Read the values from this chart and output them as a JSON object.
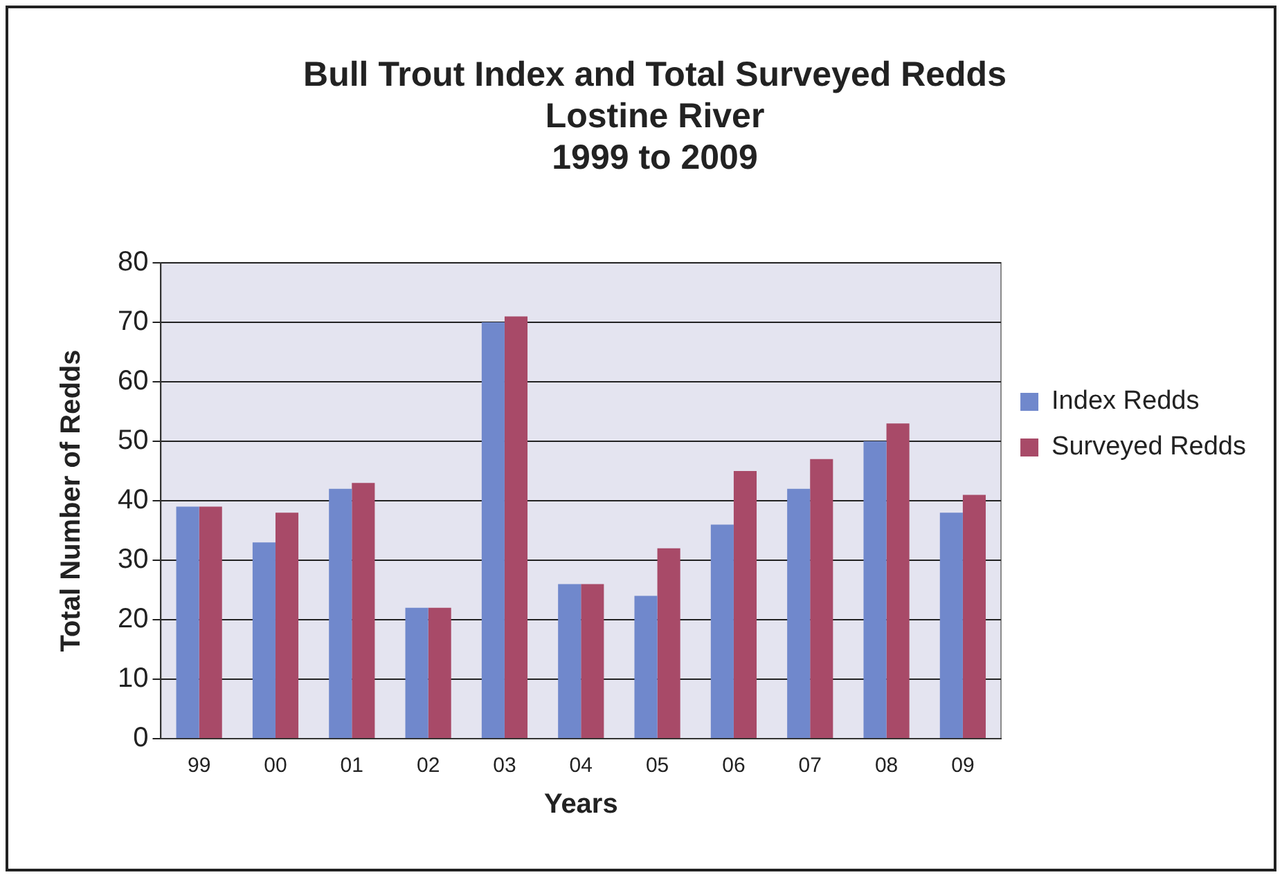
{
  "chart_data": {
    "type": "bar",
    "title": [
      "Bull Trout Index and Total Surveyed Redds",
      "Lostine River",
      "1999 to 2009"
    ],
    "xlabel": "Years",
    "ylabel": "Total Number of Redds",
    "categories": [
      "99",
      "00",
      "01",
      "02",
      "03",
      "04",
      "05",
      "06",
      "07",
      "08",
      "09"
    ],
    "series": [
      {
        "name": "Index Redds",
        "color": "#7088cc",
        "values": [
          39,
          33,
          42,
          22,
          70,
          26,
          24,
          36,
          42,
          50,
          38
        ]
      },
      {
        "name": "Surveyed Redds",
        "color": "#a84a68",
        "values": [
          39,
          38,
          43,
          22,
          71,
          26,
          32,
          45,
          47,
          53,
          41
        ]
      }
    ],
    "ylim": [
      0,
      80
    ],
    "yticks": [
      0,
      10,
      20,
      30,
      40,
      50,
      60,
      70,
      80
    ],
    "grid": "y",
    "legend": "right"
  }
}
